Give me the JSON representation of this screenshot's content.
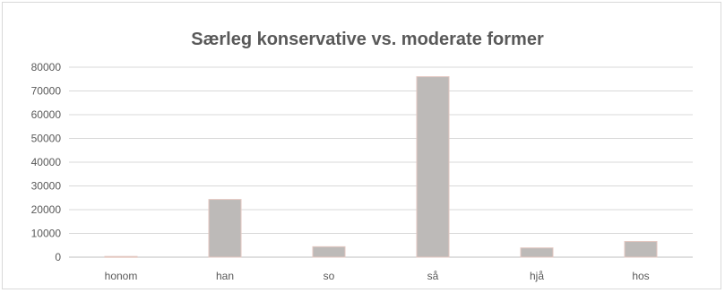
{
  "chart_data": {
    "type": "bar",
    "title": "Særleg konservative vs. moderate former",
    "categories": [
      "honom",
      "han",
      "so",
      "så",
      "hjå",
      "hos"
    ],
    "values": [
      300,
      24300,
      4400,
      76000,
      3900,
      6600
    ],
    "ylim": [
      0,
      80000
    ],
    "yticks": [
      "0",
      "10000",
      "20000",
      "30000",
      "40000",
      "50000",
      "60000",
      "70000",
      "80000"
    ],
    "grid": true,
    "legend": "none",
    "bar_color": "#bdbab8"
  }
}
